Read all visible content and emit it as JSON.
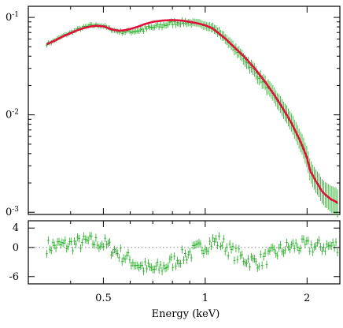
{
  "chart_data": [
    {
      "type": "line",
      "panel": "spectrum",
      "xlabel": "Energy (keV)",
      "ylabel": "",
      "x_scale": "log",
      "y_scale": "log",
      "xlim": [
        0.3,
        2.5
      ],
      "ylim": [
        0.00095,
        0.13
      ],
      "y_tick_labels": [
        {
          "value": 0.1,
          "base": "0",
          "exp": "-1"
        },
        {
          "value": 0.01,
          "base": "0",
          "exp": "-2"
        },
        {
          "value": 0.001,
          "base": "0",
          "exp": "-3"
        }
      ],
      "series": [
        {
          "kind": "model",
          "color": "#e0103a",
          "x": [
            0.34,
            0.36,
            0.38,
            0.4,
            0.42,
            0.44,
            0.46,
            0.48,
            0.5,
            0.52,
            0.54,
            0.56,
            0.58,
            0.6,
            0.63,
            0.66,
            0.7,
            0.75,
            0.8,
            0.85,
            0.9,
            0.95,
            1.0,
            1.05,
            1.1,
            1.15,
            1.2,
            1.3,
            1.4,
            1.5,
            1.6,
            1.7,
            1.8,
            1.9,
            1.95,
            2.0,
            2.02,
            2.05,
            2.08,
            2.12,
            2.16,
            2.2,
            2.25,
            2.3,
            2.36,
            2.42,
            2.46
          ],
          "y": [
            0.053,
            0.058,
            0.064,
            0.069,
            0.074,
            0.078,
            0.081,
            0.082,
            0.081,
            0.077,
            0.074,
            0.073,
            0.074,
            0.076,
            0.08,
            0.085,
            0.09,
            0.093,
            0.094,
            0.093,
            0.09,
            0.087,
            0.083,
            0.077,
            0.068,
            0.06,
            0.052,
            0.04,
            0.03,
            0.022,
            0.016,
            0.0115,
            0.0082,
            0.0056,
            0.0045,
            0.0036,
            0.0031,
            0.0026,
            0.0024,
            0.0021,
            0.0019,
            0.0017,
            0.00155,
            0.00145,
            0.00135,
            0.0013,
            0.00125
          ]
        },
        {
          "kind": "data",
          "color": "#1aaa1a",
          "x_min": 0.34,
          "x_max": 2.46,
          "n_points": 190
        }
      ]
    },
    {
      "type": "scatter",
      "panel": "residuals",
      "xlabel": "Energy (keV)",
      "ylabel": "",
      "x_scale": "log",
      "xlim": [
        0.3,
        2.5
      ],
      "ylim": [
        -7.5,
        5.5
      ],
      "y_ticks": [
        4,
        0,
        -6
      ],
      "x_ticks": [
        {
          "value": 0.5,
          "label": "0.5"
        },
        {
          "value": 1,
          "label": "1"
        },
        {
          "value": 2,
          "label": "2"
        }
      ],
      "series": [
        {
          "kind": "residuals",
          "color": "#1aaa1a",
          "x": [
            0.34,
            0.4,
            0.45,
            0.5,
            0.55,
            0.6,
            0.65,
            0.7,
            0.75,
            0.8,
            0.85,
            0.9,
            0.95,
            1.0,
            1.05,
            1.1,
            1.15,
            1.2,
            1.3,
            1.4,
            1.5,
            1.6,
            1.7,
            1.8,
            1.9,
            2.0,
            2.1,
            2.2,
            2.3,
            2.4,
            2.46
          ],
          "y": [
            0.2,
            0.6,
            1.2,
            0.8,
            -1.0,
            -2.6,
            -4.0,
            -4.6,
            -4.1,
            -3.0,
            -2.0,
            -1.2,
            -0.4,
            0.4,
            1.2,
            1.2,
            0.3,
            -1.0,
            -2.2,
            -3.0,
            -2.4,
            -1.2,
            -0.4,
            0.2,
            0.3,
            0.2,
            0.1,
            0.2,
            0.2,
            0.3,
            0.4
          ]
        }
      ]
    }
  ]
}
